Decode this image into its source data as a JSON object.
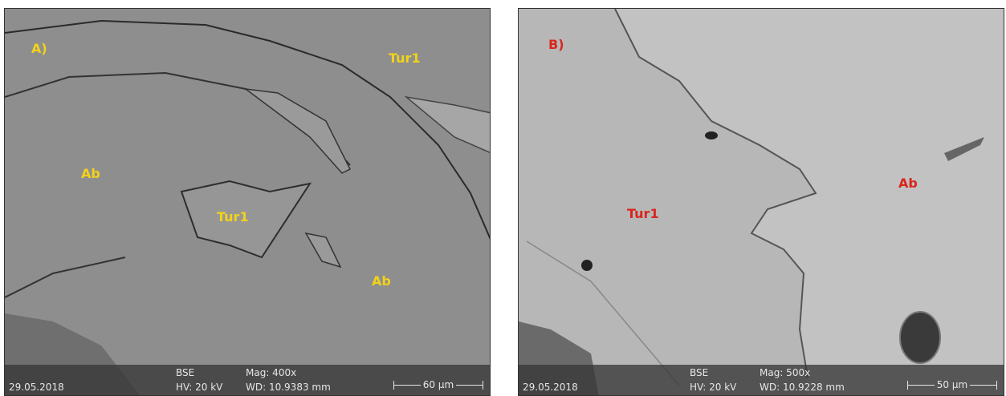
{
  "panels": [
    {
      "label": "A)",
      "annotations": [
        "Tur1",
        "Ab",
        "Tur1",
        "Ab"
      ],
      "info": {
        "date": "29.05.2018",
        "detector": "BSE",
        "voltage": "HV: 20 kV",
        "magnification": "Mag: 400x",
        "working_distance": "WD: 10.9383 mm",
        "scale": "60 µm"
      }
    },
    {
      "label": "B)",
      "annotations": [
        "Tur1",
        "Ab"
      ],
      "info": {
        "date": "29.05.2018",
        "detector": "BSE",
        "voltage": "HV: 20 kV",
        "magnification": "Mag: 500x",
        "working_distance": "WD: 10.9228 mm",
        "scale": "50 µm"
      }
    }
  ]
}
